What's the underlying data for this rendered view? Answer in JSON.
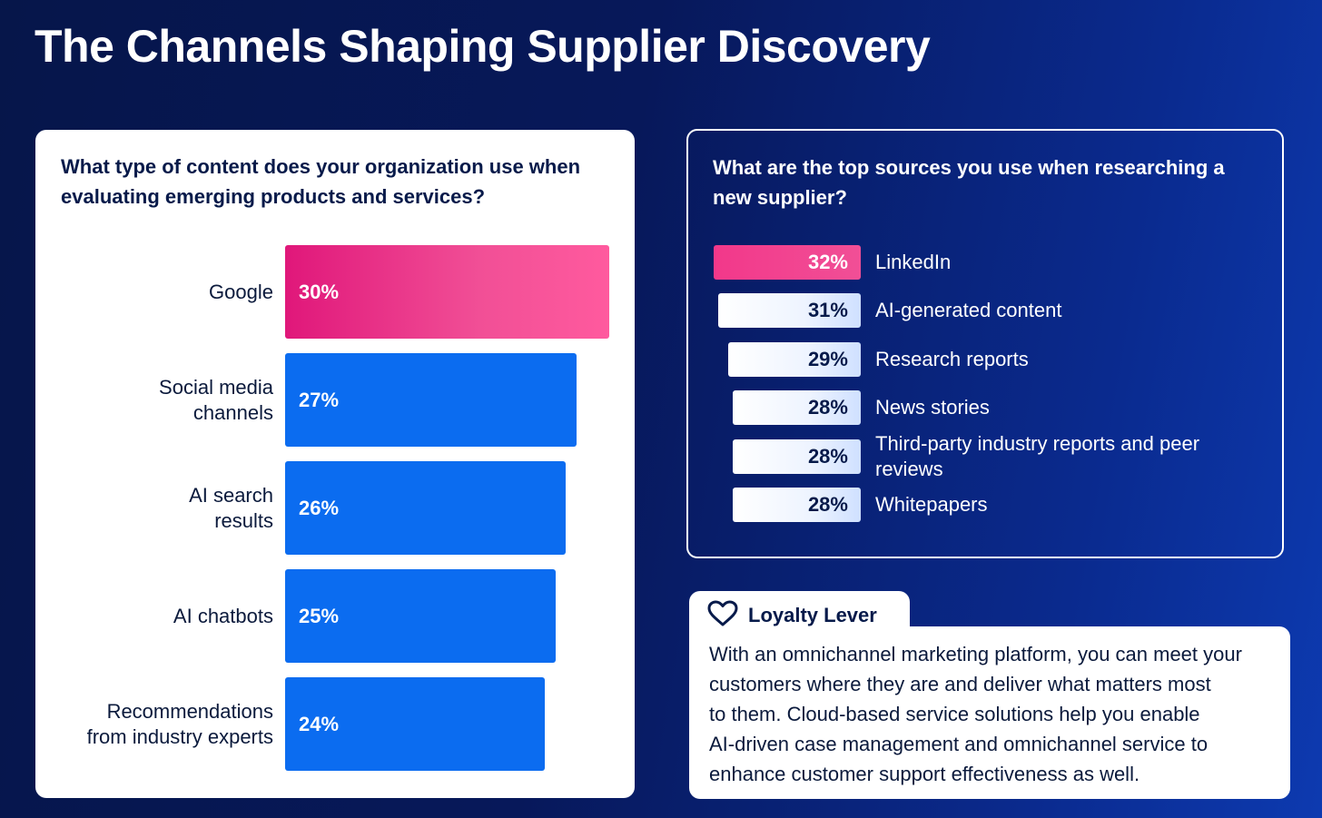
{
  "title": "The Channels Shaping Supplier Discovery",
  "colors": {
    "highlight": "#f14f96",
    "bar": "#0b6cf0"
  },
  "chart_data": [
    {
      "type": "bar",
      "orientation": "horizontal",
      "title": "What type of content does your organization use when evaluating emerging products and services?",
      "categories": [
        "Google",
        "Social media channels",
        "AI search results",
        "AI chatbots",
        "Recommendations from industry experts"
      ],
      "labels": [
        "Google",
        "Social media\nchannels",
        "AI search\nresults",
        "AI chatbots",
        "Recommendations\nfrom industry experts"
      ],
      "values": [
        30,
        27,
        26,
        25,
        24
      ],
      "value_labels": [
        "30%",
        "27%",
        "26%",
        "25%",
        "24%"
      ],
      "unit": "%"
    },
    {
      "type": "bar",
      "orientation": "horizontal",
      "title": "What are the top sources you use when researching a new supplier?",
      "categories": [
        "LinkedIn",
        "AI-generated content",
        "Research reports",
        "News stories",
        "Third-party industry reports and peer reviews",
        "Whitepapers"
      ],
      "values": [
        32,
        31,
        29,
        28,
        28,
        28
      ],
      "value_labels": [
        "32%",
        "31%",
        "29%",
        "28%",
        "28%",
        "28%"
      ],
      "unit": "%"
    }
  ],
  "loyalty": {
    "title": "Loyalty Lever",
    "lines": [
      "With an omnichannel marketing platform, you can meet your",
      "customers where they are and deliver what matters most",
      "to them. Cloud-based service solutions help you enable",
      "AI-driven case management and omnichannel service to",
      "enhance customer support effectiveness as well."
    ]
  }
}
